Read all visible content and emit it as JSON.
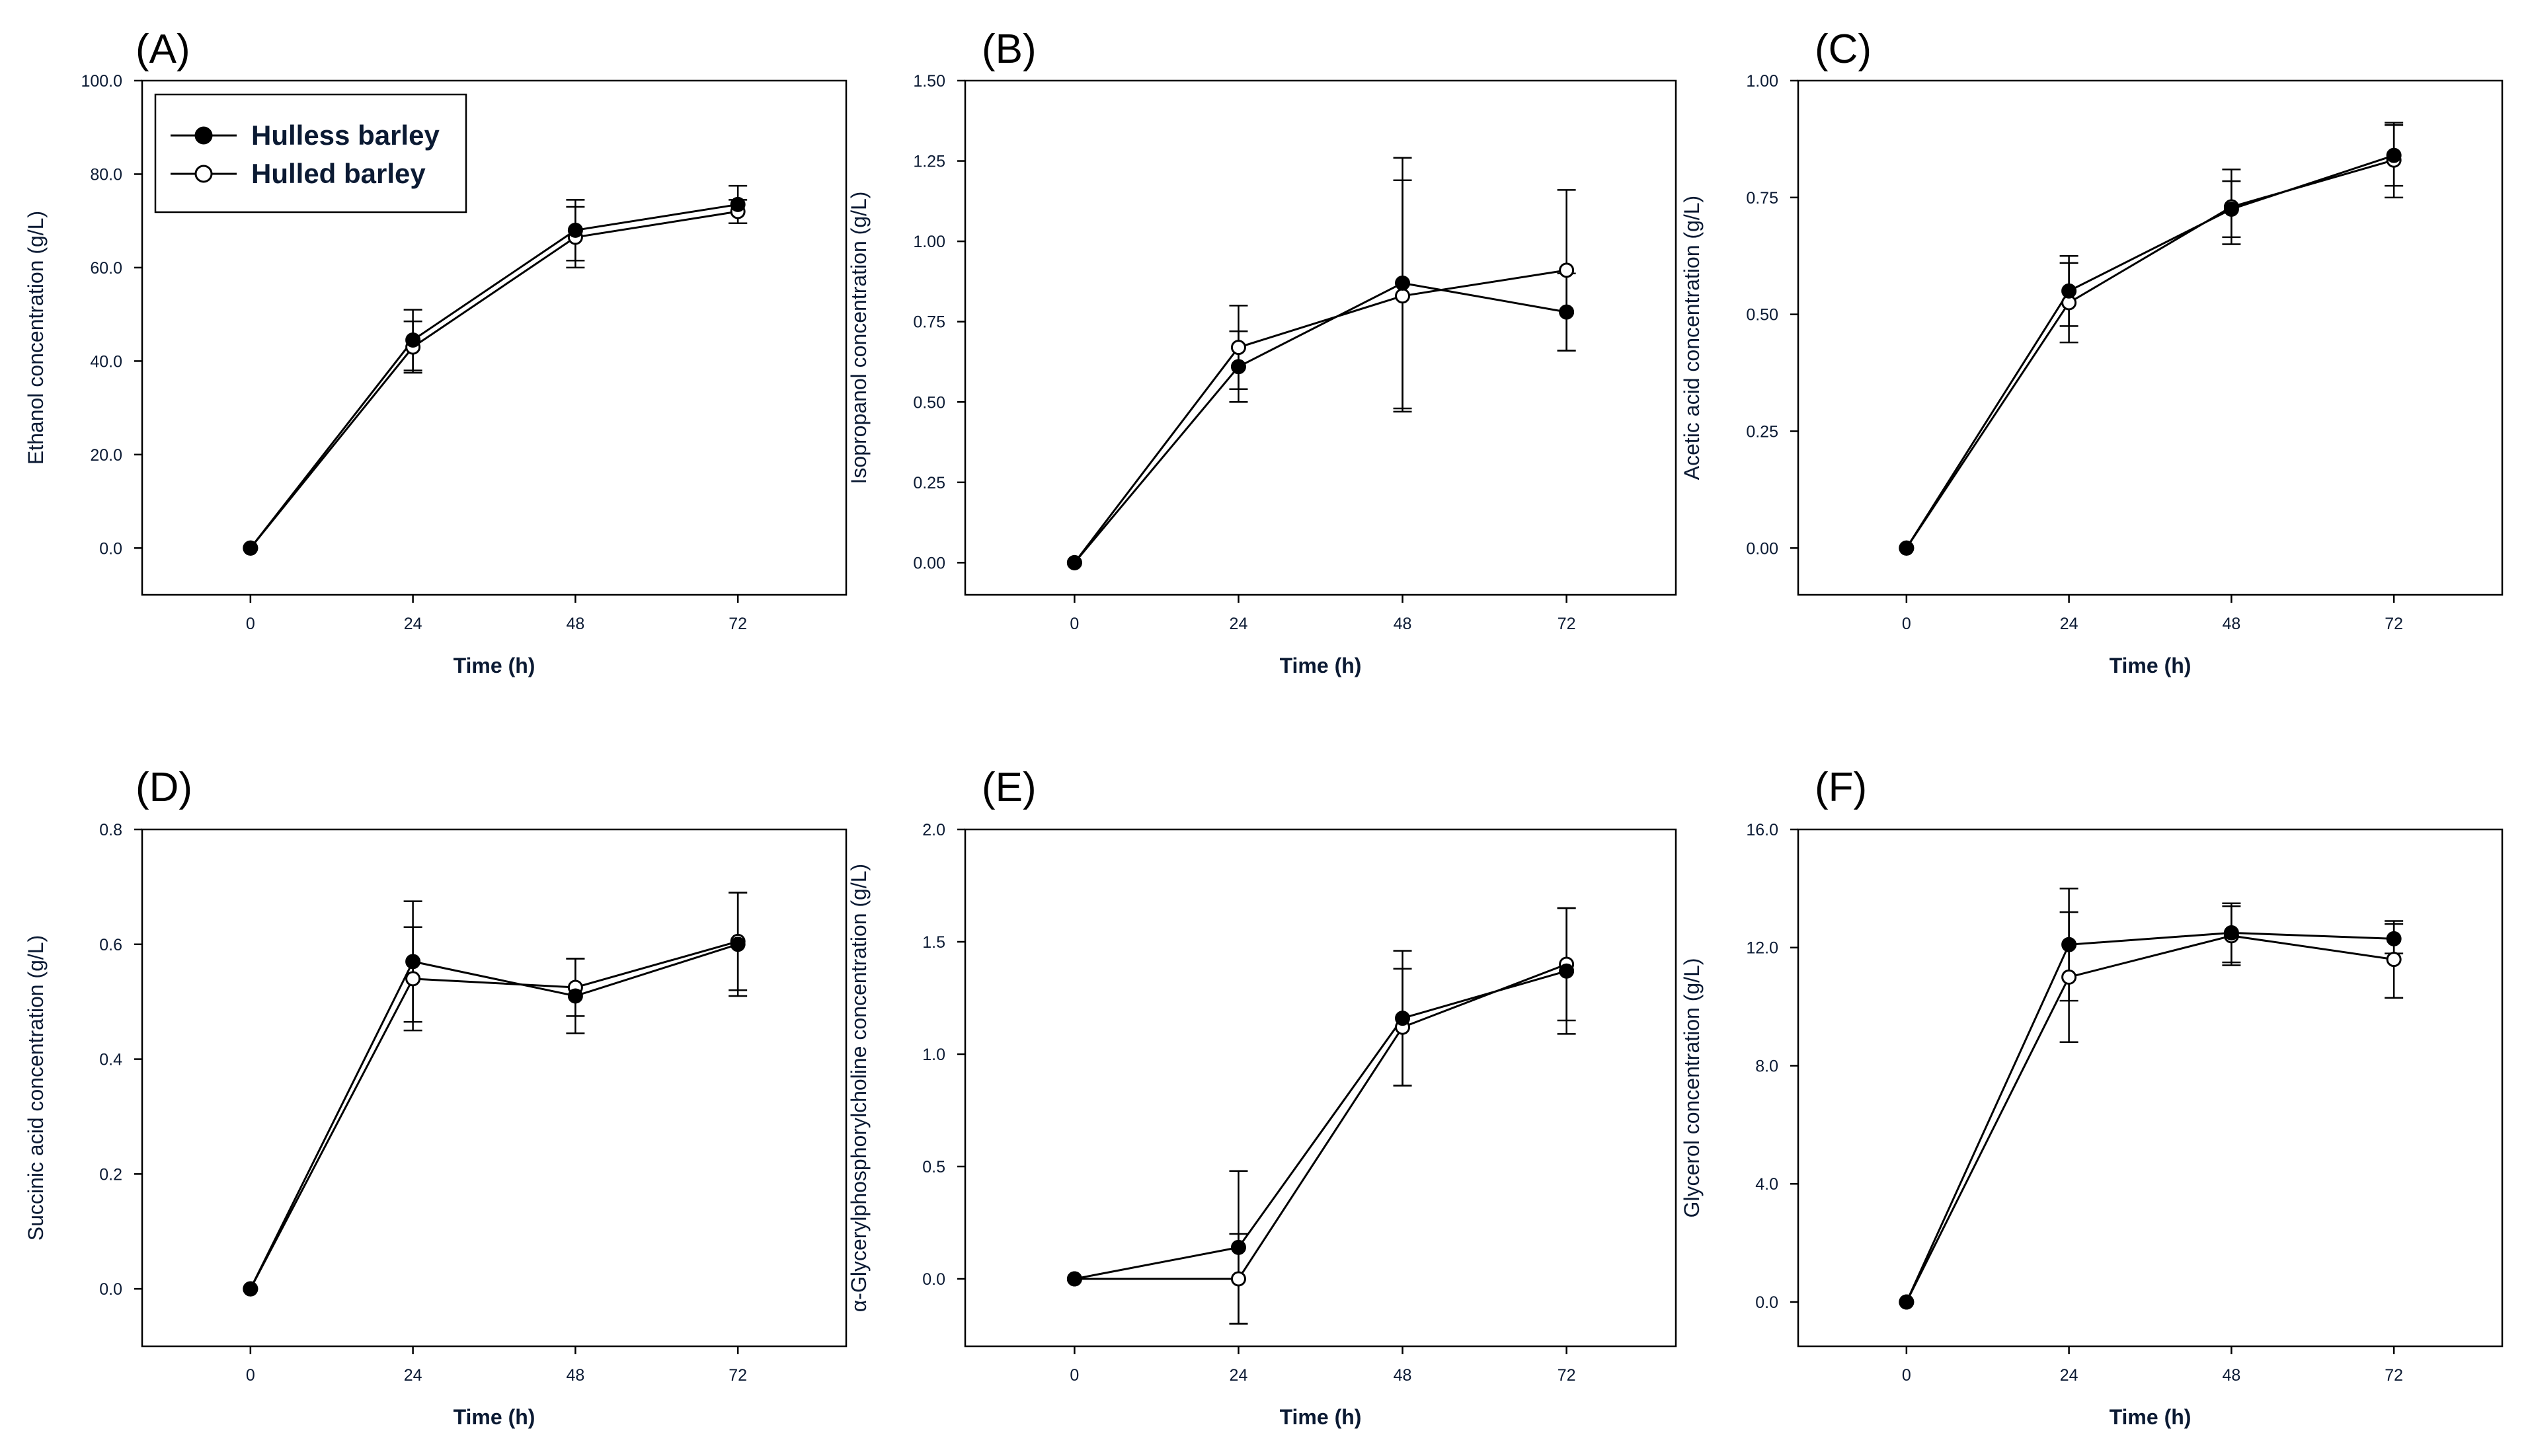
{
  "chart_data": [
    {
      "panel": "(A)",
      "type": "line",
      "xlabel": "Time (h)",
      "ylabel": "Ethanol concentration (g/L)",
      "x": [
        0,
        24,
        48,
        72
      ],
      "xticks": [
        "0",
        "24",
        "48",
        "72"
      ],
      "ylim": [
        -10,
        100
      ],
      "yticks": [
        "0.0",
        "20.0",
        "40.0",
        "60.0",
        "80.0",
        "100.0"
      ],
      "legend": {
        "position": "top-left",
        "entries": [
          "Hulless barley",
          "Hulled barley"
        ]
      },
      "series": [
        {
          "name": "Hulless barley",
          "marker": "filled-circle",
          "values": [
            0.0,
            44.5,
            68.0,
            73.5
          ],
          "errors": [
            0,
            6.5,
            6.5,
            4.0
          ]
        },
        {
          "name": "Hulled barley",
          "marker": "open-circle",
          "values": [
            0.0,
            43.0,
            66.5,
            72.0
          ],
          "errors": [
            0,
            5.5,
            6.5,
            2.5
          ]
        }
      ]
    },
    {
      "panel": "(B)",
      "type": "line",
      "xlabel": "Time (h)",
      "ylabel": "Isopropanol concentration (g/L)",
      "x": [
        0,
        24,
        48,
        72
      ],
      "xticks": [
        "0",
        "24",
        "48",
        "72"
      ],
      "ylim": [
        -0.1,
        1.5
      ],
      "yticks": [
        "0.00",
        "0.25",
        "0.50",
        "0.75",
        "1.00",
        "1.25",
        "1.50"
      ],
      "series": [
        {
          "name": "Hulless barley",
          "marker": "filled-circle",
          "values": [
            0.0,
            0.61,
            0.87,
            0.78
          ],
          "errors": [
            0,
            0.11,
            0.39,
            0.12
          ]
        },
        {
          "name": "Hulled barley",
          "marker": "open-circle",
          "values": [
            0.0,
            0.67,
            0.83,
            0.91
          ],
          "errors": [
            0,
            0.13,
            0.36,
            0.25
          ]
        }
      ]
    },
    {
      "panel": "(C)",
      "type": "line",
      "xlabel": "Time (h)",
      "ylabel": "Acetic acid concentration (g/L)",
      "x": [
        0,
        24,
        48,
        72
      ],
      "xticks": [
        "0",
        "24",
        "48",
        "72"
      ],
      "ylim": [
        -0.1,
        1.0
      ],
      "yticks": [
        "0.00",
        "0.25",
        "0.50",
        "0.75",
        "1.00"
      ],
      "series": [
        {
          "name": "Hulless barley",
          "marker": "filled-circle",
          "values": [
            0.0,
            0.55,
            0.725,
            0.84
          ],
          "errors": [
            0,
            0.075,
            0.06,
            0.065
          ]
        },
        {
          "name": "Hulled barley",
          "marker": "open-circle",
          "values": [
            0.0,
            0.525,
            0.73,
            0.83
          ],
          "errors": [
            0,
            0.085,
            0.08,
            0.08
          ]
        }
      ]
    },
    {
      "panel": "(D)",
      "type": "line",
      "xlabel": "Time (h)",
      "ylabel": "Succinic acid concentration (g/L)",
      "x": [
        0,
        24,
        48,
        72
      ],
      "xticks": [
        "0",
        "24",
        "48",
        "72"
      ],
      "ylim": [
        -0.1,
        0.8
      ],
      "yticks": [
        "0.0",
        "0.2",
        "0.4",
        "0.6",
        "0.8"
      ],
      "series": [
        {
          "name": "Hulless barley",
          "marker": "filled-circle",
          "values": [
            0.0,
            0.57,
            0.51,
            0.6
          ],
          "errors": [
            0,
            0.105,
            0.065,
            0.09
          ]
        },
        {
          "name": "Hulled barley",
          "marker": "open-circle",
          "values": [
            0.0,
            0.54,
            0.525,
            0.605
          ],
          "errors": [
            0,
            0.09,
            0.05,
            0.085
          ]
        }
      ]
    },
    {
      "panel": "(E)",
      "type": "line",
      "xlabel": "Time (h)",
      "ylabel": "α-Glycerylphosphorylcholine concentration (g/L)",
      "x": [
        0,
        24,
        48,
        72
      ],
      "xticks": [
        "0",
        "24",
        "48",
        "72"
      ],
      "ylim": [
        -0.3,
        2.0
      ],
      "yticks": [
        "0.0",
        "0.5",
        "1.0",
        "1.5",
        "2.0"
      ],
      "series": [
        {
          "name": "Hulless barley",
          "marker": "filled-circle",
          "values": [
            0.0,
            0.14,
            1.16,
            1.37
          ],
          "errors": [
            0,
            0.34,
            0.3,
            0.28
          ]
        },
        {
          "name": "Hulled barley",
          "marker": "open-circle",
          "values": [
            0.0,
            0.0,
            1.12,
            1.4
          ],
          "errors": [
            0,
            0.2,
            0.26,
            0.25
          ]
        }
      ]
    },
    {
      "panel": "(F)",
      "type": "line",
      "xlabel": "Time (h)",
      "ylabel": "Glycerol concentration (g/L)",
      "x": [
        0,
        24,
        48,
        72
      ],
      "xticks": [
        "0",
        "24",
        "48",
        "72"
      ],
      "ylim": [
        -1.5,
        16.0
      ],
      "yticks": [
        "0.0",
        "4.0",
        "8.0",
        "12.0",
        "16.0"
      ],
      "series": [
        {
          "name": "Hulless barley",
          "marker": "filled-circle",
          "values": [
            0.0,
            12.1,
            12.5,
            12.3
          ],
          "errors": [
            0,
            1.9,
            1.0,
            0.5
          ]
        },
        {
          "name": "Hulled barley",
          "marker": "open-circle",
          "values": [
            0.0,
            11.0,
            12.4,
            11.6
          ],
          "errors": [
            0,
            2.2,
            1.0,
            1.3
          ]
        }
      ]
    }
  ]
}
